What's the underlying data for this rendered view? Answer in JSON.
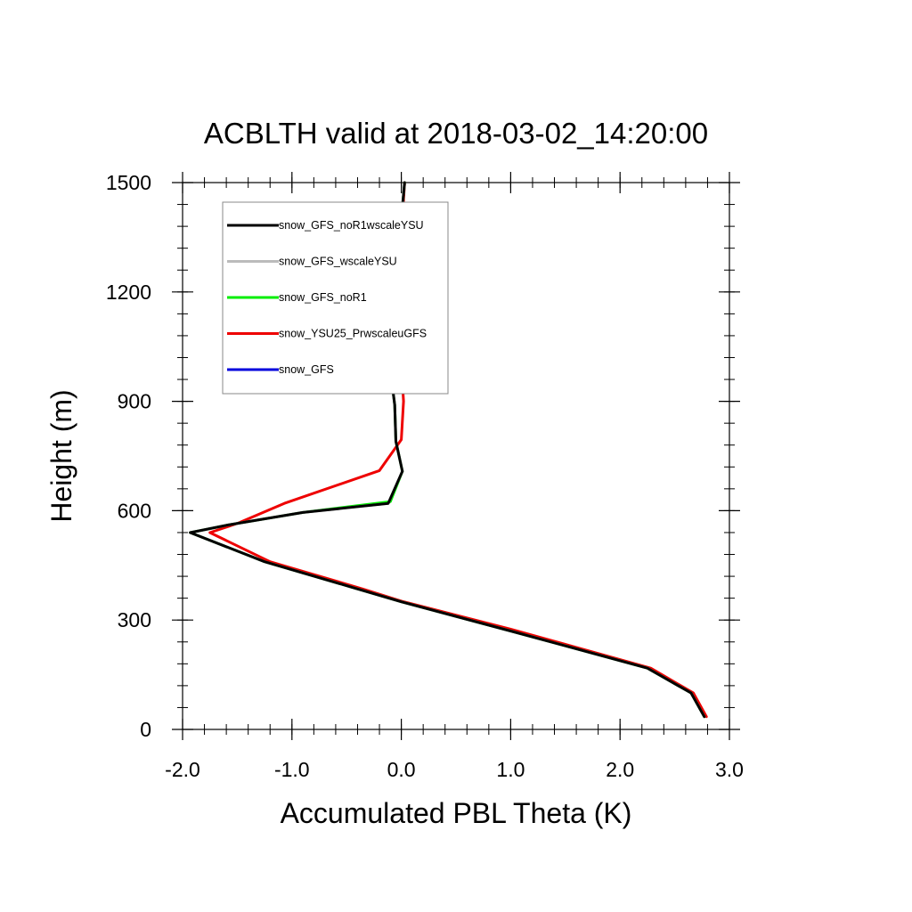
{
  "chart_data": {
    "type": "line",
    "title": "ACBLTH valid at 2018-03-02_14:20:00",
    "xlabel": "Accumulated PBL Theta (K)",
    "ylabel": "Height (m)",
    "xlim": [
      -2.0,
      3.0
    ],
    "ylim": [
      0,
      1500
    ],
    "xticks": [
      -2.0,
      -1.0,
      0.0,
      1.0,
      2.0,
      3.0
    ],
    "xtick_labels": [
      "-2.0",
      "-1.0",
      "0.0",
      "1.0",
      "2.0",
      "3.0"
    ],
    "yticks": [
      0,
      300,
      600,
      900,
      1200,
      1500
    ],
    "ytick_labels": [
      "0",
      "300",
      "600",
      "900",
      "1200",
      "1500"
    ],
    "grid": false,
    "legend_position": "top-left",
    "series": [
      {
        "name": "snow_GFS_noR1wscaleYSU",
        "color": "#000000",
        "points": [
          [
            2.77,
            35
          ],
          [
            2.65,
            100
          ],
          [
            2.25,
            168
          ],
          [
            1.0,
            270
          ],
          [
            0.0,
            350
          ],
          [
            -0.45,
            390
          ],
          [
            -1.25,
            460
          ],
          [
            -1.93,
            540
          ],
          [
            -1.6,
            560
          ],
          [
            -0.9,
            595
          ],
          [
            -0.12,
            620
          ],
          [
            0.01,
            708
          ],
          [
            -0.05,
            790
          ],
          [
            -0.06,
            890
          ],
          [
            -0.1,
            985
          ],
          [
            -0.02,
            1175
          ],
          [
            0.0,
            1400
          ],
          [
            0.03,
            1500
          ]
        ]
      },
      {
        "name": "snow_GFS_wscaleYSU",
        "color": "#bbbbbb",
        "points": [
          [
            2.77,
            35
          ],
          [
            2.65,
            100
          ],
          [
            2.25,
            168
          ],
          [
            1.0,
            270
          ],
          [
            0.0,
            350
          ],
          [
            -0.45,
            390
          ],
          [
            -1.25,
            460
          ],
          [
            -1.93,
            540
          ],
          [
            -1.6,
            560
          ],
          [
            -0.9,
            595
          ],
          [
            -0.12,
            620
          ],
          [
            0.01,
            708
          ],
          [
            -0.05,
            790
          ],
          [
            -0.06,
            890
          ],
          [
            -0.1,
            985
          ],
          [
            -0.02,
            1175
          ],
          [
            0.0,
            1400
          ],
          [
            0.03,
            1500
          ]
        ]
      },
      {
        "name": "snow_GFS_noR1",
        "color": "#00ee00",
        "points": [
          [
            2.77,
            35
          ],
          [
            2.65,
            100
          ],
          [
            2.25,
            168
          ],
          [
            1.0,
            270
          ],
          [
            0.0,
            350
          ],
          [
            -0.45,
            390
          ],
          [
            -1.25,
            460
          ],
          [
            -1.93,
            540
          ],
          [
            -1.6,
            560
          ],
          [
            -0.9,
            595
          ],
          [
            -0.1,
            625
          ],
          [
            0.01,
            708
          ],
          [
            -0.05,
            790
          ],
          [
            -0.06,
            890
          ],
          [
            -0.1,
            985
          ],
          [
            -0.02,
            1175
          ],
          [
            0.0,
            1400
          ],
          [
            0.03,
            1500
          ]
        ]
      },
      {
        "name": "snow_YSU25_PrwscaleuGFS",
        "color": "#ee0000",
        "points": [
          [
            2.79,
            35
          ],
          [
            2.67,
            100
          ],
          [
            2.28,
            168
          ],
          [
            1.0,
            275
          ],
          [
            0.0,
            352
          ],
          [
            -0.35,
            385
          ],
          [
            -1.2,
            460
          ],
          [
            -1.75,
            540
          ],
          [
            -1.5,
            565
          ],
          [
            -1.07,
            620
          ],
          [
            -0.2,
            710
          ],
          [
            0.0,
            795
          ],
          [
            0.02,
            900
          ],
          [
            0.0,
            1000
          ],
          [
            0.01,
            1200
          ],
          [
            0.01,
            1400
          ],
          [
            0.03,
            1500
          ]
        ]
      },
      {
        "name": "snow_GFS",
        "color": "#0000dd",
        "points": []
      }
    ]
  }
}
